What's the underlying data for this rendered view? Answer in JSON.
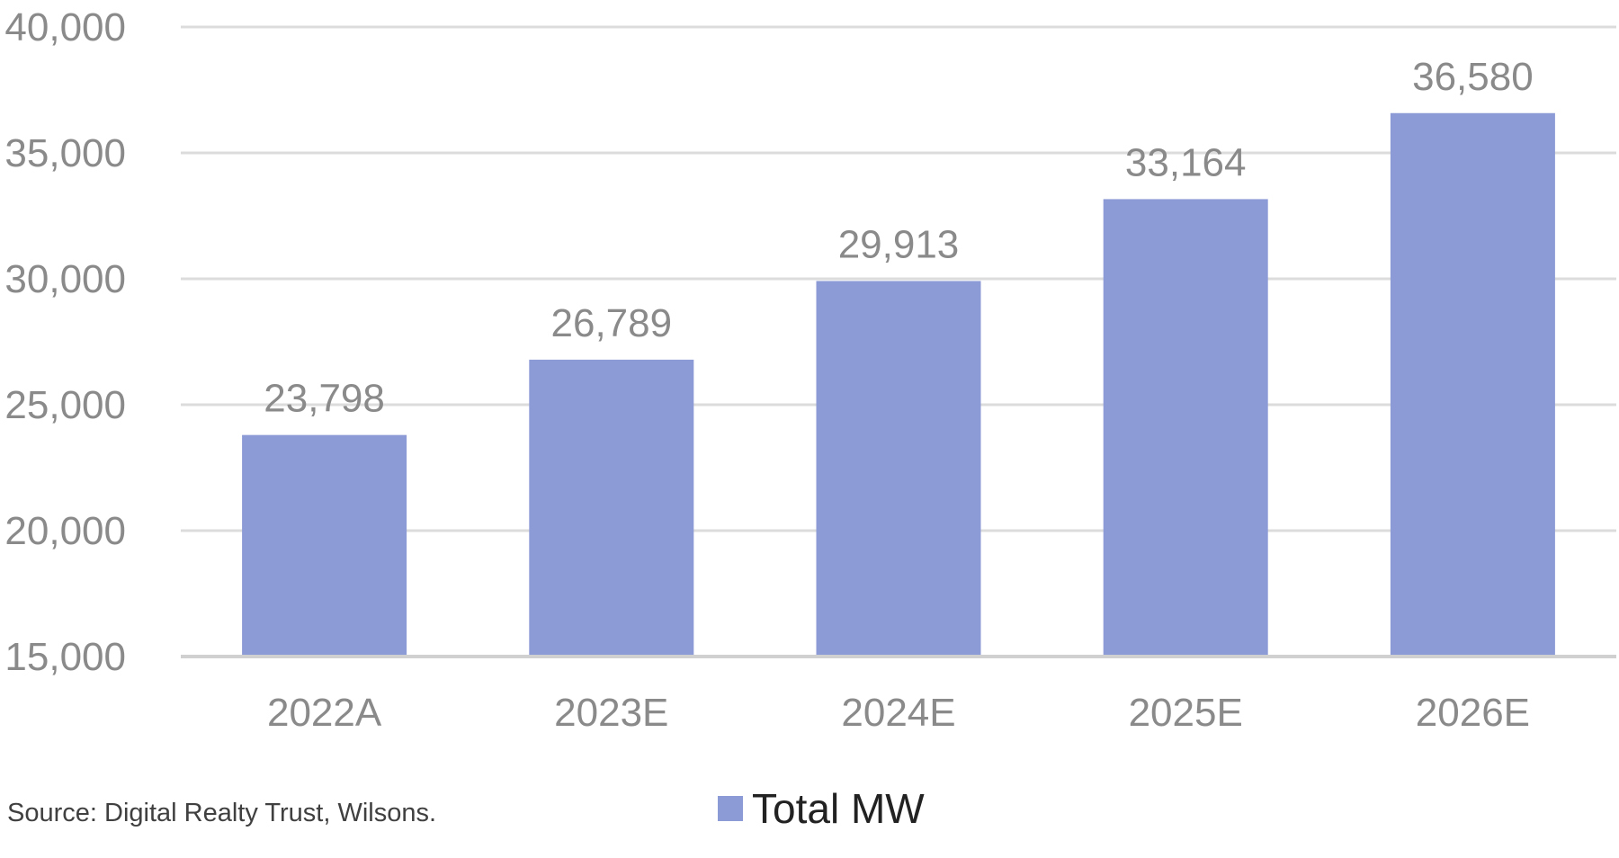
{
  "chart_data": {
    "type": "bar",
    "categories": [
      "2022A",
      "2023E",
      "2024E",
      "2025E",
      "2026E"
    ],
    "series": [
      {
        "name": "Total MW",
        "values": [
          23798,
          26789,
          29913,
          33164,
          36580
        ],
        "color": "#8c9ad6"
      }
    ],
    "data_labels": [
      "23,798",
      "26,789",
      "29,913",
      "33,164",
      "36,580"
    ],
    "yticks": [
      "15,000",
      "20,000",
      "25,000",
      "30,000",
      "35,000",
      "40,000"
    ],
    "ytick_values": [
      15000,
      20000,
      25000,
      30000,
      35000,
      40000
    ],
    "ylim": [
      15000,
      40000
    ],
    "grid": true,
    "legend_position": "bottom",
    "title": "",
    "xlabel": "",
    "ylabel": ""
  },
  "source": "Source: Digital Realty Trust, Wilsons."
}
